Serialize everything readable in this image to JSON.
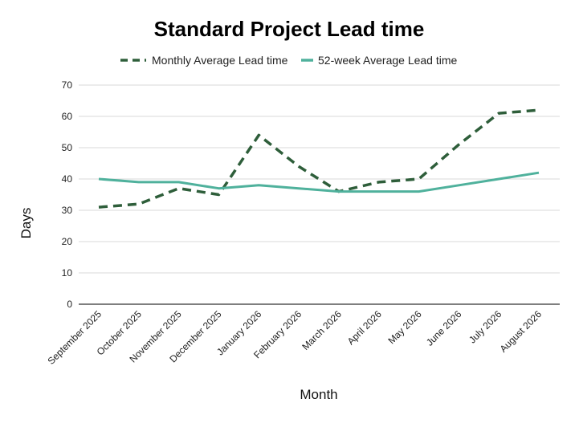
{
  "chart_data": {
    "type": "line",
    "title": "Standard Project Lead time",
    "xlabel": "Month",
    "ylabel": "Days",
    "ylim": [
      0,
      70
    ],
    "yticks": [
      0,
      10,
      20,
      30,
      40,
      50,
      60,
      70
    ],
    "grid": true,
    "legend_position": "top",
    "categories": [
      "September 2025",
      "October 2025",
      "November 2025",
      "December 2025",
      "January 2026",
      "February 2026",
      "March 2026",
      "April 2026",
      "May 2026",
      "June 2026",
      "July 2026",
      "August 2026"
    ],
    "series": [
      {
        "name": "Monthly Average Lead time",
        "style": "dashed",
        "color": "#2e5e3a",
        "values": [
          31,
          32,
          37,
          35,
          54,
          44,
          36,
          39,
          40,
          51,
          61,
          62
        ]
      },
      {
        "name": "52-week Average Lead time",
        "style": "solid",
        "color": "#4fb19c",
        "values": [
          40,
          39,
          39,
          37,
          38,
          37,
          36,
          36,
          36,
          38,
          40,
          42
        ]
      }
    ]
  }
}
